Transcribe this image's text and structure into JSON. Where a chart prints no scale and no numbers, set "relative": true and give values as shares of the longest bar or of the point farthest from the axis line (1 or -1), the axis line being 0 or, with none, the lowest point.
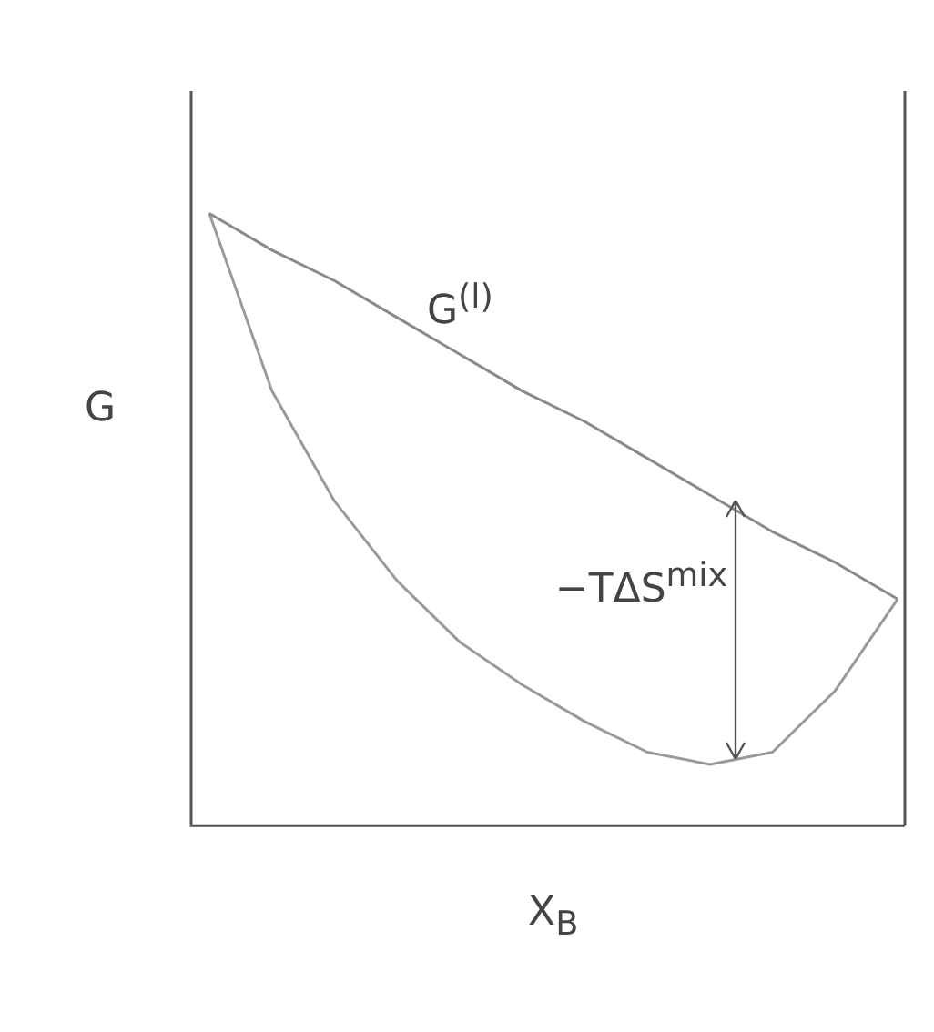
{
  "chart_data": {
    "type": "line",
    "relative": true,
    "xlabel": "X$_{B}$",
    "ylabel": "G",
    "categories": [
      null,
      null,
      null,
      null,
      null,
      null,
      null,
      null,
      null,
      null,
      null,
      null
    ],
    "series": [
      {
        "name": "G$^{(l)}$",
        "color": "#8a8a8a",
        "values": [
          1.0,
          0.94,
          0.89,
          0.83,
          0.77,
          0.71,
          0.66,
          0.6,
          0.54,
          0.48,
          0.43,
          0.37
        ]
      },
      {
        "color": "#9a9a9a",
        "values": [
          1.0,
          0.71,
          0.53,
          0.4,
          0.3,
          0.23,
          0.17,
          0.12,
          0.1,
          0.12,
          0.22,
          0.37
        ]
      }
    ],
    "annotations": [
      "−TΔS$^{mix}$"
    ],
    "grid": false,
    "legend": false,
    "marker": "none"
  }
}
